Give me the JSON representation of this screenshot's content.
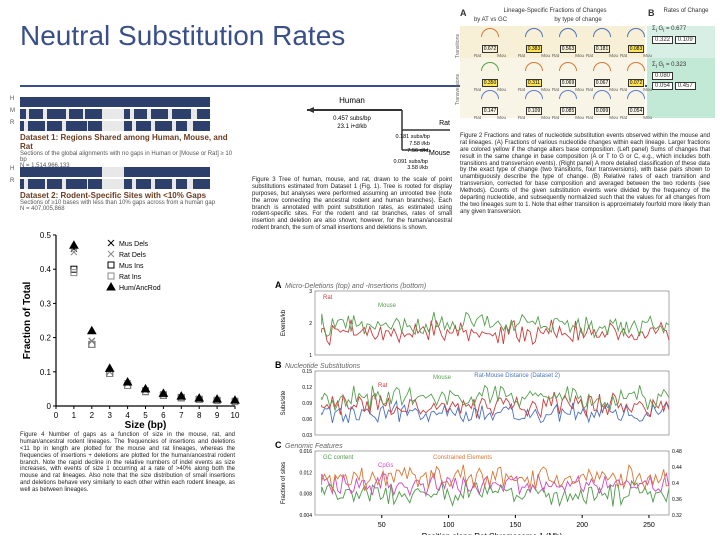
{
  "title": "Neutral Substitution Rates",
  "datasets": {
    "d1": {
      "title": "Dataset 1: Regions Shared among Human, Mouse, and Rat",
      "sub": "Sections of the global alignments with no gaps in Human or [Mouse or Rat] ≥ 10 bp",
      "n": "N = 1,514,966,133"
    },
    "d2": {
      "title": "Dataset 2: Rodent-Specific Sites with <10% Gaps",
      "sub": "Sections of ≥10 bases with less than 10% gaps across from a human gap",
      "n": "N = 407,005,868"
    },
    "rows": [
      "H",
      "M",
      "R"
    ]
  },
  "fig3": {
    "caption": "Figure 3   Tree of human, mouse, and rat, drawn to the scale of point substitutions estimated from Dataset 1 (Fig. 1). Tree is rooted for display purposes, but analyses were performed assuming an unrooted tree (note the arrow connecting the ancestral rodent and human branches). Each branch is annotated with point substitution rates, as estimated using rodent-specific sites. For the rodent and rat branches, rates of small insertion and deletion are also shown; however, for the human/ancestral rodent branch, the sum of small insertions and deletions is shown.",
    "human": {
      "label": "Human",
      "rate": "0.457 subs/bp",
      "indel": "23.1 i+d/kb"
    },
    "rat": {
      "label": "Rat",
      "rate": "0.181 subs/bp",
      "ins": "7.58 i/kb",
      "del": "7.56 d/kb"
    },
    "mouse": {
      "label": "Mouse",
      "rate": "0.091 subs/bp",
      "ins": "3.58 i/kb",
      "del": "3.87 d/kb"
    }
  },
  "fig4": {
    "xlabel": "Size (bp)",
    "ylabel": "Fraction of Total",
    "xticks": [
      0,
      1,
      2,
      3,
      4,
      5,
      6,
      7,
      8,
      9,
      10
    ],
    "yticks": [
      0,
      0.1,
      0.2,
      0.3,
      0.4,
      0.5
    ],
    "legend": [
      "Mus Dels",
      "Rat Dels",
      "Mus Ins",
      "Rat Ins",
      "Hum/AncRod"
    ],
    "legend_markers": [
      "x",
      "x",
      "square",
      "square",
      "triangle"
    ],
    "legend_colors": [
      "#000",
      "#888",
      "#000",
      "#888",
      "#000"
    ],
    "series": {
      "musdels": [
        0.46,
        0.19,
        0.1,
        0.066,
        0.046,
        0.034,
        0.026,
        0.021,
        0.018,
        0.015
      ],
      "ratdels": [
        0.45,
        0.19,
        0.1,
        0.066,
        0.046,
        0.034,
        0.026,
        0.021,
        0.018,
        0.015
      ],
      "musins": [
        0.4,
        0.18,
        0.095,
        0.06,
        0.042,
        0.031,
        0.024,
        0.019,
        0.016,
        0.013
      ],
      "ratins": [
        0.39,
        0.18,
        0.095,
        0.06,
        0.042,
        0.031,
        0.024,
        0.019,
        0.016,
        0.013
      ],
      "humancrod": [
        0.47,
        0.22,
        0.11,
        0.07,
        0.05,
        0.037,
        0.029,
        0.023,
        0.02,
        0.017
      ]
    },
    "caption": "Figure 4   Number of gaps as a function of size in the mouse, rat, and human/ancestral rodent lineages. The frequencies of insertions and deletions <11 bp in length are plotted for the mouse and rat lineages, whereas the frequencies of insertions + deletions are plotted for the human/ancestral rodent branch. Note the rapid decline in the relative numbers of indel events as size increases, with events of size 1 occurring at a rate of >40% along both the mouse and rat lineages. Also note that the size distribution of small insertions and deletions behave very similarly to each other within each rodent lineage, as well as between lineages."
  },
  "fig2": {
    "headerA": "A",
    "headerA_sub": "Lineage-Specific Fractions of Changes",
    "headerA_left": "by AT vs GC",
    "headerA_right": "by type of change",
    "headerB": "B",
    "headerB_sub": "Rates of Change",
    "row_labels": [
      "Transitions",
      "Transversions"
    ],
    "col_left_labels": [
      "A or T↓",
      "G or C",
      "G or C↓",
      "A or T"
    ],
    "right_B_labels": [
      "Σi Gi = 0.677",
      "Σi Gi = 0.323"
    ],
    "right_B_vals_ts": [
      "0.322",
      "0.109"
    ],
    "right_B_vals_tv": [
      "0.080",
      "0.054",
      "0.457"
    ],
    "cells": [
      {
        "v": "0.672",
        "hl": false,
        "col": "#d97836"
      },
      {
        "v": "0.383",
        "hl": true,
        "col": "#4b73be"
      },
      {
        "v": "0.563",
        "hl": false,
        "col": "#4b73be"
      },
      {
        "v": "0.181",
        "hl": false,
        "col": "#4b73be"
      },
      {
        "v": "0.083",
        "hl": true,
        "col": "#4b73be"
      },
      {
        "v": "0.350",
        "hl": true,
        "col": "#55a049"
      },
      {
        "v": "0.079",
        "hl": false,
        "col": "#55a049"
      },
      {
        "v": "0.311",
        "hl": true,
        "col": "#d97836"
      },
      {
        "v": "0.069",
        "hl": false,
        "col": "#d97836"
      },
      {
        "v": "0.067",
        "hl": false,
        "col": "#d97836"
      },
      {
        "v": "0.072",
        "hl": true,
        "col": "#d97836"
      },
      {
        "v": "0.147",
        "hl": false,
        "col": "#5b7dd0"
      },
      {
        "v": "0.109",
        "hl": false,
        "col": "#5b7dd0"
      },
      {
        "v": "0.085",
        "hl": false,
        "col": "#5b7dd0"
      },
      {
        "v": "0.099",
        "hl": false,
        "col": "#5b7dd0"
      },
      {
        "v": "0.054",
        "hl": false,
        "col": "#5b7dd0"
      },
      {
        "v": "0.457",
        "hl": false,
        "col": "#5b7dd0"
      }
    ],
    "caption": "Figure 2   Fractions and rates of nucleotide substitution events observed within the mouse and rat lineages. (A) Fractions of various nucleotide changes within each lineage. Larger fractions are colored yellow if the change alters base composition. (Left panel) Sums of changes that result in the same change in base composition (A or T to G or C, e.g., which includes both transitions and transversion events). (Right panel) A more detailed classification of these data by the exact type of change (two transitions, four transversions), with base pairs shown to unambiguously describe the type of change. (B) Relative rates of each transition and transversion, corrected for base composition and averaged between the two rodents (see Methods). Counts of the given substitution events were divided by the frequency of the departing nucleotide, and subsequently normalized such that the values for all changes from the two lineages sum to 1. Note that either transition is approximately fourfold more likely than any given transversion."
  },
  "fig5": {
    "sections": [
      {
        "label": "A",
        "title": "Micro-Deletions (top) and -Insertions (bottom)",
        "ylabel": "Events/kb",
        "ylims": [
          0,
          3
        ],
        "yticks": [
          1,
          2,
          3
        ],
        "series": [
          {
            "label": "Rat",
            "color": "#cc3d3d"
          },
          {
            "label": "Mouse",
            "color": "#58a050"
          }
        ]
      },
      {
        "label": "B",
        "title": "Nucleotide Substitutions",
        "ylabel": "Subs/site",
        "ylims": [
          0.03,
          0.15
        ],
        "yticks": [
          0.03,
          0.06,
          0.09,
          0.12,
          0.15,
          0.24
        ],
        "series": [
          {
            "label": "Rat-Mouse Distance (Dataset 2)",
            "color": "#4b73be"
          },
          {
            "label": "Rat",
            "color": "#cc3d3d"
          },
          {
            "label": "Mouse",
            "color": "#58a050"
          }
        ]
      },
      {
        "label": "C",
        "title": "Genomic Features",
        "ylabel": "Fraction of sites",
        "ylims": [
          0,
          0.016
        ],
        "yticks": [
          0.004,
          0.008,
          0.012,
          0.016
        ],
        "series": [
          {
            "label": "GC content",
            "color": "#4f9a4a"
          },
          {
            "label": "CpGs",
            "color": "#d048c4"
          },
          {
            "label": "Constrained Elements",
            "color": "#d97836"
          }
        ],
        "ylims2": [
          0.32,
          0.48
        ],
        "yticks2": [
          0.32,
          0.36,
          0.4,
          0.44,
          0.48
        ]
      }
    ],
    "xlabel": "Position along Rat Chromosome 1 (Mb)",
    "xticks": [
      50,
      100,
      150,
      200,
      250
    ]
  },
  "colors": {
    "title": "#3a4f8a",
    "rule": "#3a4f8a",
    "rat": "#cc3d3d",
    "mouse": "#58a050",
    "dist": "#4b73be",
    "gc": "#4f9a4a",
    "cpg": "#d048c4",
    "constrained": "#d97836",
    "ts_band": "#f7f0d6",
    "tv_band": "#d7efe4"
  }
}
